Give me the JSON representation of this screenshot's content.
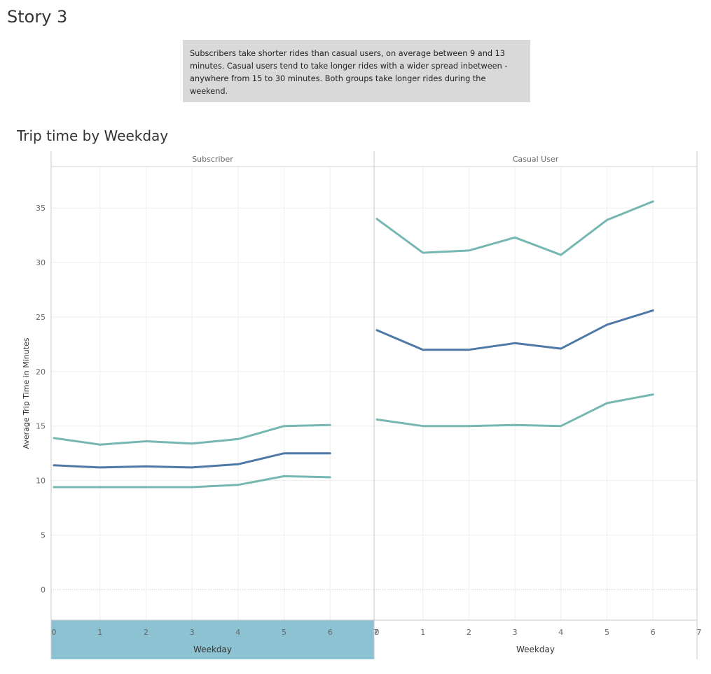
{
  "story": {
    "title": "Story 3",
    "caption_lines": [
      "Subscribers take shorter rides than casual users, on average between 9 and 13",
      "minutes. Casual users tend to take longer rides with a wider spread inbetween -",
      "anywhere from 15 to 30 minutes. Both groups take longer rides during the weekend."
    ]
  },
  "chart_data": {
    "type": "line",
    "title": "Trip time by Weekday",
    "ylabel": "Average Trip Time in Minutes",
    "xlabel": "Weekday",
    "ylim": [
      -2.8,
      38.8
    ],
    "yticks": [
      0,
      5,
      10,
      15,
      20,
      25,
      30,
      35
    ],
    "xlim": [
      0,
      7
    ],
    "xticks": [
      0,
      1,
      2,
      3,
      4,
      5,
      6,
      7
    ],
    "grid": true,
    "colors": {
      "mean": "#4e79a7",
      "band": "#76b7b2",
      "highlight": "#8cc2d1"
    },
    "panels": [
      {
        "name": "Subscriber",
        "highlighted": true,
        "series": [
          {
            "role": "band",
            "x": [
              0,
              1,
              2,
              3,
              4,
              5,
              6
            ],
            "values": [
              13.9,
              13.3,
              13.6,
              13.4,
              13.8,
              15.0,
              15.1
            ]
          },
          {
            "role": "mean",
            "x": [
              0,
              1,
              2,
              3,
              4,
              5,
              6
            ],
            "values": [
              11.4,
              11.2,
              11.3,
              11.2,
              11.5,
              12.5,
              12.5
            ]
          },
          {
            "role": "band",
            "x": [
              0,
              1,
              2,
              3,
              4,
              5,
              6
            ],
            "values": [
              9.4,
              9.4,
              9.4,
              9.4,
              9.6,
              10.4,
              10.3
            ]
          }
        ]
      },
      {
        "name": "Casual User",
        "highlighted": false,
        "series": [
          {
            "role": "band",
            "x": [
              0,
              1,
              2,
              3,
              4,
              5,
              6
            ],
            "values": [
              34.0,
              30.9,
              31.1,
              32.3,
              30.7,
              33.9,
              35.6
            ]
          },
          {
            "role": "mean",
            "x": [
              0,
              1,
              2,
              3,
              4,
              5,
              6
            ],
            "values": [
              23.8,
              22.0,
              22.0,
              22.6,
              22.1,
              24.3,
              25.6
            ]
          },
          {
            "role": "band",
            "x": [
              0,
              1,
              2,
              3,
              4,
              5,
              6
            ],
            "values": [
              15.6,
              15.0,
              15.0,
              15.1,
              15.0,
              17.1,
              17.9
            ]
          }
        ]
      }
    ]
  }
}
